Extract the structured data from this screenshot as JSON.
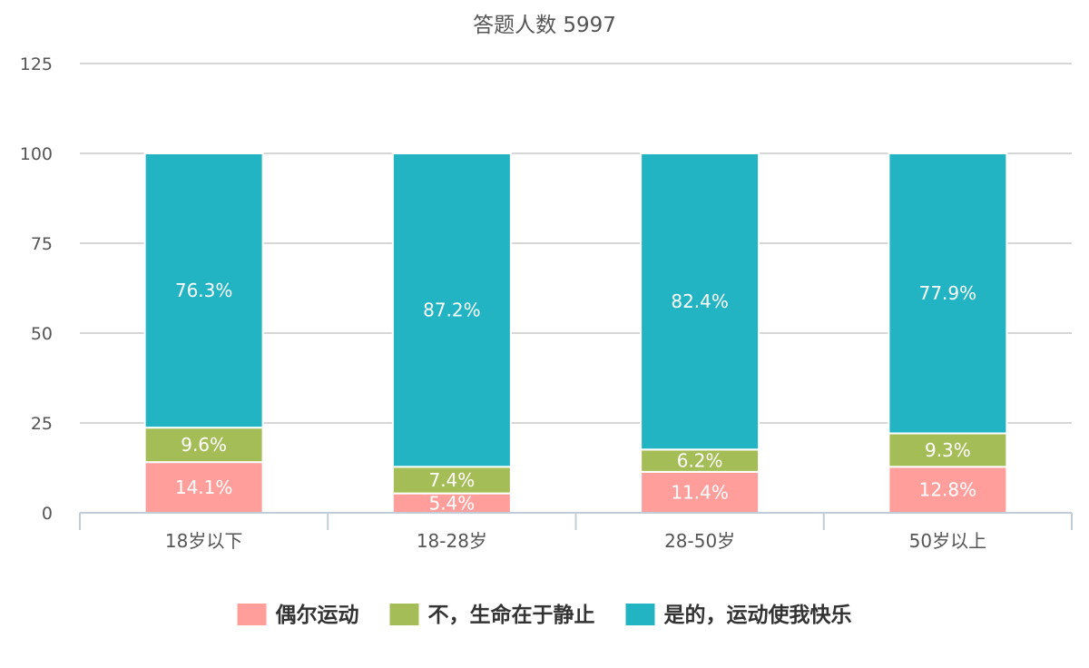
{
  "chart_data": {
    "type": "bar",
    "stacked": true,
    "title": "答题人数 5997",
    "xlabel": "",
    "ylabel": "",
    "categories": [
      "18岁以下",
      "18-28岁",
      "28-50岁",
      "50岁以上"
    ],
    "ylim": [
      0,
      125
    ],
    "yticks": [
      "0",
      "25",
      "50",
      "75",
      "100",
      "125"
    ],
    "grid": true,
    "legend_position": "bottom",
    "series": [
      {
        "name": "偶尔运动",
        "color": "#ff9e9b",
        "values": [
          14.1,
          5.4,
          11.4,
          12.8
        ],
        "labels": [
          "14.1%",
          "5.4%",
          "11.4%",
          "12.8%"
        ]
      },
      {
        "name": "不，生命在于静止",
        "color": "#a5bd57",
        "values": [
          9.6,
          7.4,
          6.2,
          9.3
        ],
        "labels": [
          "9.6%",
          "7.4%",
          "6.2%",
          "9.3%"
        ]
      },
      {
        "name": "是的，运动使我快乐",
        "color": "#23b4c3",
        "values": [
          76.3,
          87.2,
          82.4,
          77.9
        ],
        "labels": [
          "76.3%",
          "87.2%",
          "82.4%",
          "77.9%"
        ]
      }
    ]
  }
}
